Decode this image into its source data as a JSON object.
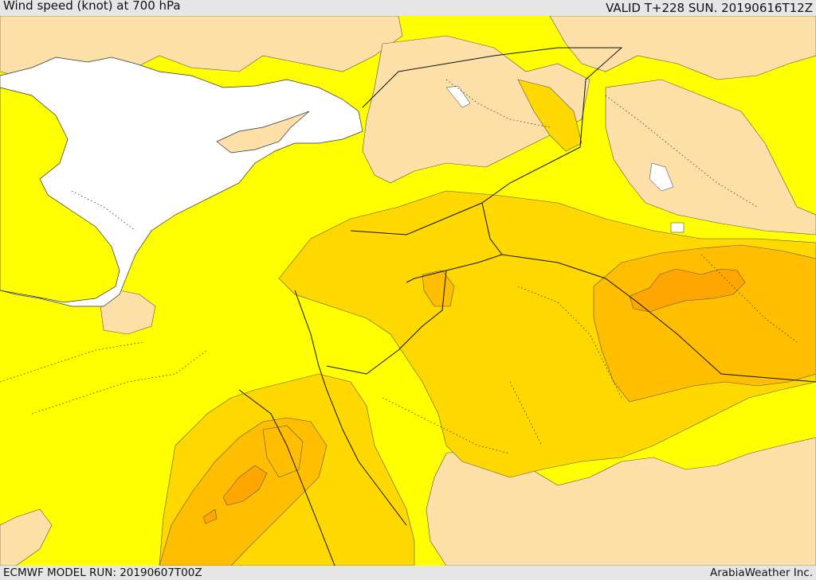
{
  "header": {
    "title": "Wind speed (knot) at 700 hPa",
    "valid": "VALID T+228 SUN. 20190616T12Z"
  },
  "footer": {
    "model_run": "ECMWF MODEL RUN: 20190607T00Z",
    "credit": "ArabiaWeather Inc."
  },
  "colors": {
    "sea": "#ffffff",
    "band_light": "#fde0a8",
    "band_base": "#ffff00",
    "band_gold": "#ffd800",
    "band_amber": "#ffbf00",
    "band_orange": "#ffa600"
  }
}
